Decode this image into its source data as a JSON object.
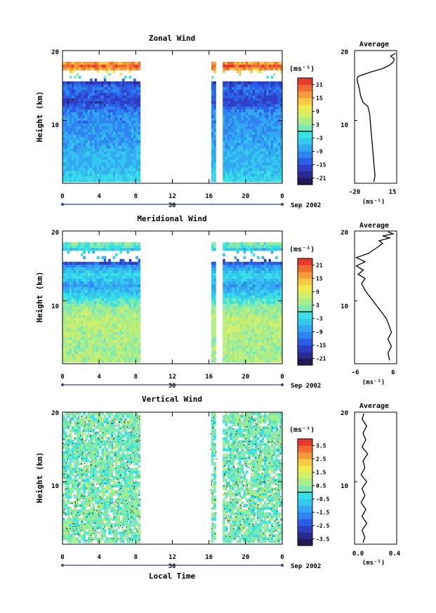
{
  "figure": {
    "month_label": "Sep 2002",
    "day_label": "30",
    "unit": "(ms⁻¹)",
    "xlabel": "Local Time",
    "average_title": "Average",
    "height_label": "Height (km)"
  },
  "chart_data": [
    {
      "type": "heatmap",
      "title": "Zonal Wind",
      "ylabel": "Height (km)",
      "xlabel": "",
      "x_ticks": [
        "0",
        "4",
        "8",
        "12",
        "16",
        "20",
        "0"
      ],
      "ylim": [
        1,
        20
      ],
      "y_ticks": [
        "20",
        "10"
      ],
      "xlim": [
        0,
        24
      ],
      "data_gaps_hours": [
        [
          8.5,
          16.2
        ],
        [
          16.8,
          17.6
        ],
        [
          18.4,
          18.6
        ]
      ],
      "colorbar": {
        "unit": "(ms⁻¹)",
        "levels": [
          -24,
          -21,
          -18,
          -15,
          -12,
          -9,
          -6,
          -3,
          0,
          3,
          6,
          9,
          12,
          15,
          18,
          21,
          24
        ],
        "tick_labels": [
          "21",
          "15",
          "9",
          "3",
          "-3",
          "-9",
          "-15",
          "-21"
        ]
      },
      "profile_rows": [
        {
          "h": 1.5,
          "v": -3
        },
        {
          "h": 3,
          "v": -6
        },
        {
          "h": 5,
          "v": -6
        },
        {
          "h": 7,
          "v": -8
        },
        {
          "h": 9,
          "v": -9
        },
        {
          "h": 11,
          "v": -10
        },
        {
          "h": 12.5,
          "v": -16
        },
        {
          "h": 14.5,
          "v": -12
        },
        {
          "h": 15.5,
          "v": -18
        },
        {
          "h": 16,
          "v": 0
        },
        {
          "h": 16.5,
          "v": 6
        },
        {
          "h": 17.5,
          "v": 21
        },
        {
          "h": 18.5,
          "v": 12
        }
      ],
      "average_profile": {
        "xlim": [
          -20,
          15
        ],
        "x_ticks": [
          "-20",
          "15"
        ],
        "xlabel": "(ms⁻¹)",
        "y_ticks": [
          "20",
          "10"
        ],
        "points": [
          [
            -4,
            1.2
          ],
          [
            -3,
            2
          ],
          [
            -3.5,
            3
          ],
          [
            -4,
            4
          ],
          [
            -4.5,
            5
          ],
          [
            -5,
            6
          ],
          [
            -5.5,
            7
          ],
          [
            -6,
            8
          ],
          [
            -6.5,
            9
          ],
          [
            -7,
            10
          ],
          [
            -7.5,
            11
          ],
          [
            -9,
            12
          ],
          [
            -13,
            12.6
          ],
          [
            -15,
            13.5
          ],
          [
            -16,
            14.5
          ],
          [
            -17.5,
            15.5
          ],
          [
            -18,
            16
          ],
          [
            -17,
            16.3
          ],
          [
            -12,
            16.6
          ],
          [
            -5,
            17
          ],
          [
            3,
            17.4
          ],
          [
            8,
            17.8
          ],
          [
            12,
            18.3
          ],
          [
            13,
            18.8
          ],
          [
            10,
            19.2
          ],
          [
            14,
            19.6
          ]
        ]
      }
    },
    {
      "type": "heatmap",
      "title": "Meridional Wind",
      "ylabel": "Height (km)",
      "xlabel": "",
      "x_ticks": [
        "0",
        "4",
        "8",
        "12",
        "16",
        "20",
        "0"
      ],
      "ylim": [
        1,
        20
      ],
      "y_ticks": [
        "20",
        "10"
      ],
      "xlim": [
        0,
        24
      ],
      "data_gaps_hours": [
        [
          8.5,
          16.2
        ],
        [
          16.8,
          17.6
        ],
        [
          18.4,
          18.6
        ]
      ],
      "colorbar": {
        "unit": "(ms⁻¹)",
        "levels": [
          -24,
          -21,
          -18,
          -15,
          -12,
          -9,
          -6,
          -3,
          0,
          3,
          6,
          9,
          12,
          15,
          18,
          21,
          24
        ],
        "tick_labels": [
          "21",
          "15",
          "9",
          "3",
          "-3",
          "-9",
          "-15",
          "-21"
        ]
      },
      "profile_rows": [
        {
          "h": 1.5,
          "v": 5
        },
        {
          "h": 3,
          "v": 4
        },
        {
          "h": 5,
          "v": 5
        },
        {
          "h": 7,
          "v": 6
        },
        {
          "h": 9,
          "v": 3
        },
        {
          "h": 10.5,
          "v": -3
        },
        {
          "h": 12,
          "v": -8
        },
        {
          "h": 13.5,
          "v": -2
        },
        {
          "h": 14.8,
          "v": -9
        },
        {
          "h": 15.5,
          "v": -18
        },
        {
          "h": 16.2,
          "v": 0
        },
        {
          "h": 17,
          "v": -6
        },
        {
          "h": 17.8,
          "v": 2
        }
      ],
      "average_profile": {
        "xlim": [
          -6,
          6
        ],
        "x_ticks": [
          "-6",
          "6"
        ],
        "xlabel": "(ms⁻¹)",
        "y_ticks": [
          "20",
          "10"
        ],
        "points": [
          [
            4,
            1.5
          ],
          [
            3.5,
            2.5
          ],
          [
            4.5,
            3.5
          ],
          [
            3.5,
            4.5
          ],
          [
            4.5,
            5.5
          ],
          [
            3.8,
            6.5
          ],
          [
            3,
            7.5
          ],
          [
            1.5,
            8.5
          ],
          [
            0,
            9.5
          ],
          [
            -1.5,
            10.5
          ],
          [
            -3,
            11.5
          ],
          [
            -4,
            12.5
          ],
          [
            -3,
            13.2
          ],
          [
            -5,
            13.8
          ],
          [
            -3.5,
            14.4
          ],
          [
            -5.5,
            15
          ],
          [
            -3,
            15.6
          ],
          [
            -5.5,
            16.2
          ],
          [
            -2,
            16.8
          ],
          [
            0,
            17.5
          ],
          [
            2,
            18.2
          ],
          [
            1,
            18.6
          ],
          [
            4,
            19
          ],
          [
            2,
            19.3
          ],
          [
            5,
            19.6
          ],
          [
            3.5,
            19.9
          ]
        ]
      }
    },
    {
      "type": "heatmap",
      "title": "Vertical Wind",
      "ylabel": "Height (km)",
      "xlabel": "Local Time",
      "x_ticks": [
        "0",
        "4",
        "8",
        "12",
        "16",
        "20",
        "0"
      ],
      "ylim": [
        1,
        20
      ],
      "y_ticks": [
        "20",
        "10"
      ],
      "xlim": [
        0,
        24
      ],
      "data_gaps_hours": [
        [
          8.5,
          16.2
        ],
        [
          16.8,
          17.6
        ],
        [
          18.4,
          18.6
        ]
      ],
      "colorbar": {
        "unit": "(ms⁻¹)",
        "levels": [
          -4,
          -3.5,
          -3,
          -2.5,
          -2,
          -1.5,
          -1,
          -0.5,
          0,
          0.5,
          1,
          1.5,
          2,
          2.5,
          3,
          3.5,
          4
        ],
        "tick_labels": [
          "3.5",
          "2.5",
          "1.5",
          "0.5",
          "-0.5",
          "-1.5",
          "-2.5",
          "-3.5"
        ]
      },
      "profile_rows": [
        {
          "h": 3,
          "v": 0.3
        },
        {
          "h": 8,
          "v": 0.3
        },
        {
          "h": 14,
          "v": 0.2
        },
        {
          "h": 18,
          "v": 0.3
        }
      ],
      "average_profile": {
        "xlim": [
          -0.05,
          0.4
        ],
        "x_ticks": [
          "0.0",
          "0.4"
        ],
        "xlabel": "(ms⁻¹)",
        "y_ticks": [
          "20",
          "10"
        ],
        "points": [
          [
            0.04,
            1.2
          ],
          [
            0.06,
            2
          ],
          [
            0.03,
            3
          ],
          [
            0.08,
            4
          ],
          [
            0.03,
            5
          ],
          [
            0.07,
            6
          ],
          [
            0.02,
            7
          ],
          [
            0.06,
            8
          ],
          [
            0.03,
            9
          ],
          [
            0.08,
            10
          ],
          [
            0.02,
            11
          ],
          [
            0.06,
            12
          ],
          [
            0.04,
            13
          ],
          [
            0.09,
            14
          ],
          [
            0.03,
            15
          ],
          [
            0.07,
            16
          ],
          [
            0.04,
            17
          ],
          [
            0.08,
            18
          ],
          [
            0.03,
            19
          ],
          [
            0.05,
            19.8
          ]
        ]
      }
    }
  ]
}
